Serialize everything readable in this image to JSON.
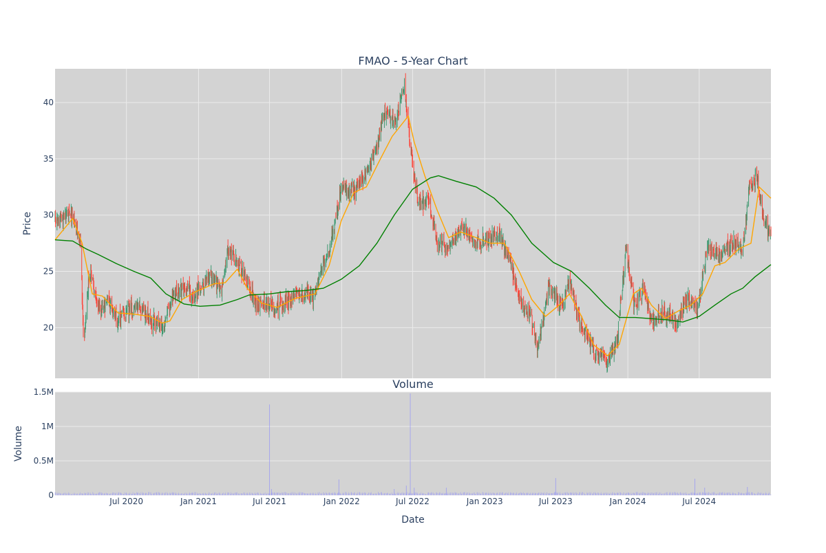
{
  "chart_data": [
    {
      "type": "candlestick",
      "title": "FMAO - 5-Year Chart",
      "xlabel": "",
      "ylabel": "Price",
      "ylim": [
        15.5,
        43.0
      ],
      "yticks": [
        20,
        25,
        30,
        35,
        40
      ],
      "x_range": [
        "2020-01-01",
        "2024-12-31"
      ],
      "grid": true,
      "legend": "none",
      "colors": {
        "background": "#d3d3d3",
        "increasing": "#3d9970",
        "decreasing": "#ff4136",
        "ma_short": "#ffa500",
        "ma_long": "#008000",
        "text": "#2a3f5f",
        "grid": "#ebebeb"
      },
      "close_path": [
        [
          "2020-01-01",
          29.5
        ],
        [
          "2020-02-10",
          30.0
        ],
        [
          "2020-03-05",
          28.0
        ],
        [
          "2020-03-14",
          18.5
        ],
        [
          "2020-03-28",
          25.0
        ],
        [
          "2020-04-25",
          21.5
        ],
        [
          "2020-05-16",
          22.5
        ],
        [
          "2020-06-10",
          20.5
        ],
        [
          "2020-07-06",
          21.5
        ],
        [
          "2020-08-02",
          22.0
        ],
        [
          "2020-09-05",
          20.5
        ],
        [
          "2020-10-05",
          20.0
        ],
        [
          "2020-10-28",
          23.0
        ],
        [
          "2020-12-01",
          23.5
        ],
        [
          "2020-12-25",
          23.0
        ],
        [
          "2021-02-01",
          24.5
        ],
        [
          "2021-03-01",
          23.5
        ],
        [
          "2021-03-16",
          27.0
        ],
        [
          "2021-04-13",
          25.5
        ],
        [
          "2021-05-07",
          24.0
        ],
        [
          "2021-05-28",
          22.0
        ],
        [
          "2021-06-27",
          22.0
        ],
        [
          "2021-07-15",
          21.8
        ],
        [
          "2021-08-18",
          22.5
        ],
        [
          "2021-09-25",
          23.0
        ],
        [
          "2021-10-24",
          22.8
        ],
        [
          "2021-11-11",
          25.0
        ],
        [
          "2021-11-27",
          26.5
        ],
        [
          "2021-12-20",
          30.0
        ],
        [
          "2021-12-31",
          32.5
        ],
        [
          "2022-02-01",
          32.0
        ],
        [
          "2022-03-01",
          33.5
        ],
        [
          "2022-04-01",
          36.0
        ],
        [
          "2022-04-21",
          39.0
        ],
        [
          "2022-05-20",
          38.5
        ],
        [
          "2022-06-10",
          41.5
        ],
        [
          "2022-06-26",
          36.0
        ],
        [
          "2022-07-15",
          31.0
        ],
        [
          "2022-08-10",
          31.5
        ],
        [
          "2022-09-01",
          27.5
        ],
        [
          "2022-10-05",
          27.0
        ],
        [
          "2022-11-01",
          29.0
        ],
        [
          "2022-12-01",
          28.0
        ],
        [
          "2023-01-02",
          27.5
        ],
        [
          "2023-01-31",
          28.5
        ],
        [
          "2023-03-02",
          26.5
        ],
        [
          "2023-03-25",
          23.0
        ],
        [
          "2023-04-29",
          21.0
        ],
        [
          "2023-05-15",
          18.0
        ],
        [
          "2023-06-13",
          23.5
        ],
        [
          "2023-07-15",
          22.0
        ],
        [
          "2023-08-06",
          24.0
        ],
        [
          "2023-08-30",
          20.5
        ],
        [
          "2023-09-25",
          18.5
        ],
        [
          "2023-10-15",
          17.5
        ],
        [
          "2023-11-10",
          17.2
        ],
        [
          "2023-12-05",
          19.0
        ],
        [
          "2023-12-27",
          27.0
        ],
        [
          "2024-01-17",
          22.0
        ],
        [
          "2024-02-11",
          23.5
        ],
        [
          "2024-03-01",
          20.5
        ],
        [
          "2024-04-01",
          21.5
        ],
        [
          "2024-05-01",
          20.5
        ],
        [
          "2024-06-01",
          22.5
        ],
        [
          "2024-06-26",
          21.5
        ],
        [
          "2024-07-21",
          27.0
        ],
        [
          "2024-08-21",
          26.5
        ],
        [
          "2024-09-25",
          27.5
        ],
        [
          "2024-10-20",
          27.0
        ],
        [
          "2024-11-05",
          32.5
        ],
        [
          "2024-11-25",
          33.5
        ],
        [
          "2024-12-12",
          29.5
        ],
        [
          "2024-12-31",
          28.5
        ]
      ],
      "series": [
        {
          "type": "line",
          "color_key": "ma_short",
          "points": [
            [
              "2020-01-01",
              27.8
            ],
            [
              "2020-02-15",
              29.7
            ],
            [
              "2020-03-10",
              27.5
            ],
            [
              "2020-04-05",
              23.0
            ],
            [
              "2020-05-01",
              22.8
            ],
            [
              "2020-06-10",
              21.3
            ],
            [
              "2020-07-20",
              21.2
            ],
            [
              "2020-08-30",
              21.0
            ],
            [
              "2020-09-30",
              20.4
            ],
            [
              "2020-10-20",
              20.6
            ],
            [
              "2020-11-20",
              22.5
            ],
            [
              "2020-12-25",
              23.2
            ],
            [
              "2021-02-10",
              23.9
            ],
            [
              "2021-03-10",
              24.0
            ],
            [
              "2021-04-10",
              25.2
            ],
            [
              "2021-05-05",
              23.5
            ],
            [
              "2021-06-10",
              22.2
            ],
            [
              "2021-07-20",
              21.8
            ],
            [
              "2021-09-05",
              22.6
            ],
            [
              "2021-10-25",
              23.0
            ],
            [
              "2021-11-30",
              25.5
            ],
            [
              "2021-12-31",
              29.5
            ],
            [
              "2022-02-01",
              32.0
            ],
            [
              "2022-03-05",
              32.5
            ],
            [
              "2022-04-10",
              35.0
            ],
            [
              "2022-05-10",
              37.0
            ],
            [
              "2022-06-20",
              38.8
            ],
            [
              "2022-07-05",
              36.5
            ],
            [
              "2022-08-01",
              33.5
            ],
            [
              "2022-09-01",
              30.5
            ],
            [
              "2022-10-01",
              28.0
            ],
            [
              "2022-11-01",
              28.5
            ],
            [
              "2022-12-10",
              28.0
            ],
            [
              "2023-01-15",
              27.5
            ],
            [
              "2023-02-20",
              27.5
            ],
            [
              "2023-03-30",
              25.0
            ],
            [
              "2023-05-01",
              22.5
            ],
            [
              "2023-06-05",
              21.0
            ],
            [
              "2023-07-10",
              22.0
            ],
            [
              "2023-08-05",
              23.0
            ],
            [
              "2023-09-05",
              21.0
            ],
            [
              "2023-10-05",
              18.5
            ],
            [
              "2023-11-10",
              17.5
            ],
            [
              "2023-12-10",
              18.5
            ],
            [
              "2024-01-15",
              23.0
            ],
            [
              "2024-02-05",
              23.5
            ],
            [
              "2024-03-01",
              22.0
            ],
            [
              "2024-04-05",
              20.8
            ],
            [
              "2024-05-10",
              21.5
            ],
            [
              "2024-06-10",
              22.0
            ],
            [
              "2024-07-10",
              23.0
            ],
            [
              "2024-08-10",
              25.5
            ],
            [
              "2024-09-05",
              25.8
            ],
            [
              "2024-10-10",
              27.0
            ],
            [
              "2024-11-10",
              27.5
            ],
            [
              "2024-12-01",
              32.5
            ],
            [
              "2024-12-31",
              31.5
            ]
          ]
        },
        {
          "type": "line",
          "color_key": "ma_long",
          "points": [
            [
              "2020-01-01",
              27.8
            ],
            [
              "2020-02-15",
              27.7
            ],
            [
              "2020-03-20",
              27.0
            ],
            [
              "2020-04-20",
              26.5
            ],
            [
              "2020-06-05",
              25.7
            ],
            [
              "2020-07-20",
              25.0
            ],
            [
              "2020-09-01",
              24.4
            ],
            [
              "2020-10-10",
              23.0
            ],
            [
              "2020-11-25",
              22.1
            ],
            [
              "2021-01-05",
              21.9
            ],
            [
              "2021-02-25",
              22.0
            ],
            [
              "2021-04-10",
              22.5
            ],
            [
              "2021-05-10",
              22.9
            ],
            [
              "2021-07-01",
              23.0
            ],
            [
              "2021-08-15",
              23.2
            ],
            [
              "2021-10-01",
              23.3
            ],
            [
              "2021-11-15",
              23.5
            ],
            [
              "2021-12-31",
              24.3
            ],
            [
              "2022-02-15",
              25.5
            ],
            [
              "2022-04-01",
              27.5
            ],
            [
              "2022-05-15",
              30.0
            ],
            [
              "2022-07-01",
              32.3
            ],
            [
              "2022-08-15",
              33.3
            ],
            [
              "2022-09-05",
              33.5
            ],
            [
              "2022-10-20",
              33.0
            ],
            [
              "2022-12-10",
              32.5
            ],
            [
              "2023-01-25",
              31.5
            ],
            [
              "2023-03-10",
              30.0
            ],
            [
              "2023-05-01",
              27.5
            ],
            [
              "2023-06-25",
              25.8
            ],
            [
              "2023-08-10",
              25.0
            ],
            [
              "2023-09-25",
              23.5
            ],
            [
              "2023-11-05",
              22.0
            ],
            [
              "2023-12-10",
              20.9
            ],
            [
              "2024-01-20",
              20.9
            ],
            [
              "2024-03-01",
              20.8
            ],
            [
              "2024-04-10",
              20.7
            ],
            [
              "2024-05-20",
              20.5
            ],
            [
              "2024-07-01",
              21.0
            ],
            [
              "2024-08-10",
              22.0
            ],
            [
              "2024-09-20",
              23.0
            ],
            [
              "2024-10-20",
              23.5
            ],
            [
              "2024-11-20",
              24.5
            ],
            [
              "2024-12-31",
              25.6
            ]
          ]
        }
      ]
    },
    {
      "type": "bar",
      "title": "Volume",
      "xlabel": "Date",
      "ylabel": "Volume",
      "ylim": [
        0,
        1500000
      ],
      "yticks": [
        0,
        500000,
        1000000,
        1500000
      ],
      "ytick_labels": [
        "0",
        "0.5M",
        "1M",
        "1.5M"
      ],
      "xticks": [
        "2020-07-01",
        "2021-01-01",
        "2021-07-01",
        "2022-01-01",
        "2022-07-01",
        "2023-01-01",
        "2023-07-01",
        "2024-01-01",
        "2024-07-01"
      ],
      "xtick_labels": [
        "Jul 2020",
        "Jan 2021",
        "Jul 2021",
        "Jan 2022",
        "Jul 2022",
        "Jan 2023",
        "Jul 2023",
        "Jan 2024",
        "Jul 2024"
      ],
      "grid": true,
      "color": "#8888ff",
      "baseline_volume": 30000,
      "spikes": [
        [
          "2021-07-01",
          1320000
        ],
        [
          "2021-07-06",
          90000
        ],
        [
          "2021-12-25",
          230000
        ],
        [
          "2022-05-15",
          90000
        ],
        [
          "2022-06-15",
          140000
        ],
        [
          "2022-06-25",
          1480000
        ],
        [
          "2022-07-05",
          110000
        ],
        [
          "2022-09-25",
          110000
        ],
        [
          "2023-07-01",
          250000
        ],
        [
          "2024-06-20",
          240000
        ],
        [
          "2024-07-15",
          110000
        ],
        [
          "2024-11-01",
          120000
        ]
      ]
    }
  ]
}
